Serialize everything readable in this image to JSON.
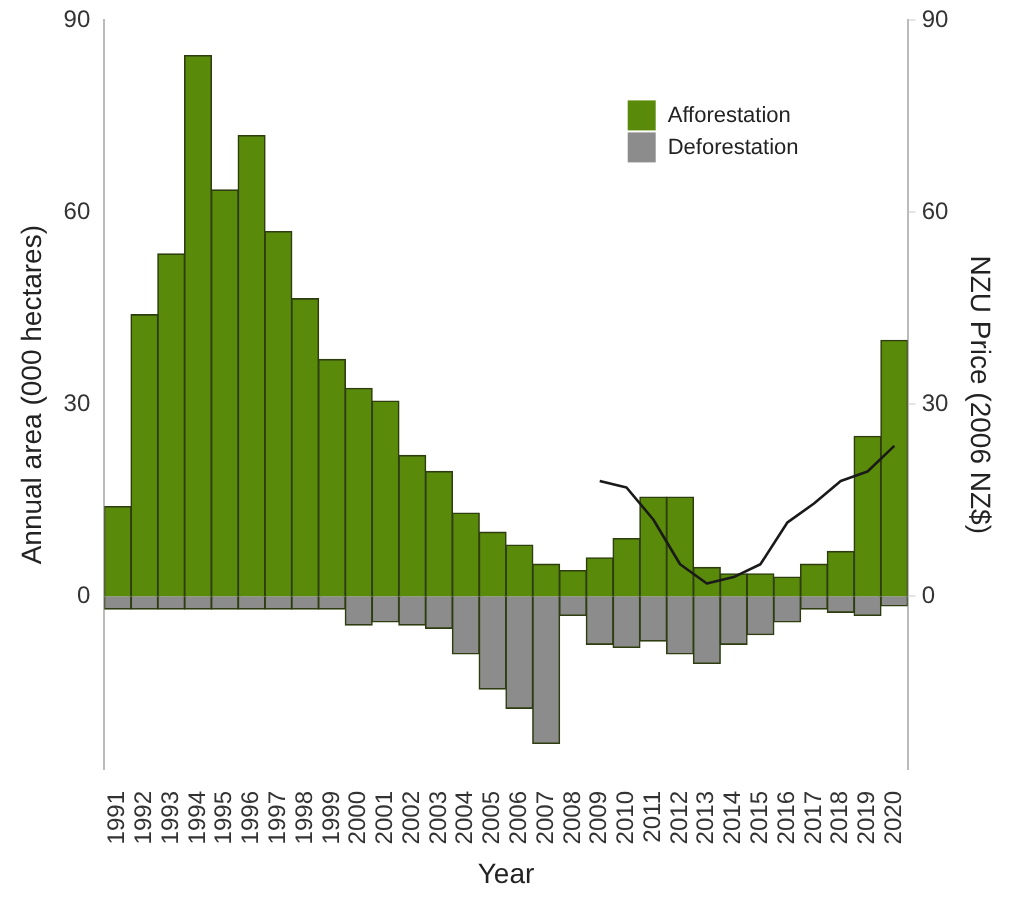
{
  "chart_data": {
    "type": "bar",
    "stacked": true,
    "xlabel": "Year",
    "ylabel": "Annual area (000 hectares)",
    "y2label": "NZU Price (2006 NZ$)",
    "categories": [
      "1991",
      "1992",
      "1993",
      "1994",
      "1995",
      "1996",
      "1997",
      "1998",
      "1999",
      "2000",
      "2001",
      "2002",
      "2003",
      "2004",
      "2005",
      "2006",
      "2007",
      "2008",
      "2009",
      "2010",
      "2011",
      "2012",
      "2013",
      "2014",
      "2015",
      "2016",
      "2017",
      "2018",
      "2019",
      "2020"
    ],
    "series": [
      {
        "name": "Afforestation",
        "color": "#5a8a0a",
        "values": [
          14,
          44,
          53.5,
          84.5,
          63.5,
          72,
          57,
          46.5,
          37,
          32.5,
          30.5,
          22,
          19.5,
          13,
          10,
          8,
          5,
          4,
          6,
          9,
          15.5,
          15.5,
          4.5,
          3.5,
          3.5,
          3,
          5,
          7,
          25,
          40
        ]
      },
      {
        "name": "Deforestation",
        "color": "#8c8c8c",
        "values": [
          -2,
          -2,
          -2,
          -2,
          -2,
          -2,
          -2,
          -2,
          -2,
          -4.5,
          -4,
          -4.5,
          -5,
          -9,
          -14.5,
          -17.5,
          -23,
          -3,
          -7.5,
          -8,
          -7,
          -9,
          -10.5,
          -7.5,
          -6,
          -4,
          -2,
          -2.5,
          -3,
          -1.5
        ]
      },
      {
        "type": "line",
        "axis": "y2",
        "color": "#1a1a1a",
        "values": [
          null,
          null,
          null,
          null,
          null,
          null,
          null,
          null,
          null,
          null,
          null,
          null,
          null,
          null,
          null,
          null,
          null,
          null,
          18,
          17,
          12,
          5,
          2,
          3,
          5,
          11.5,
          14.5,
          18,
          19.5,
          23.5
        ]
      }
    ],
    "ylim": [
      -27,
      90
    ],
    "yticks": [
      0,
      30,
      60,
      90
    ],
    "y2lim": [
      -27,
      90
    ],
    "y2ticks": [
      0,
      30,
      60,
      90
    ],
    "legend": "top right",
    "grid": false,
    "line_style": "solid",
    "marker": "none"
  }
}
